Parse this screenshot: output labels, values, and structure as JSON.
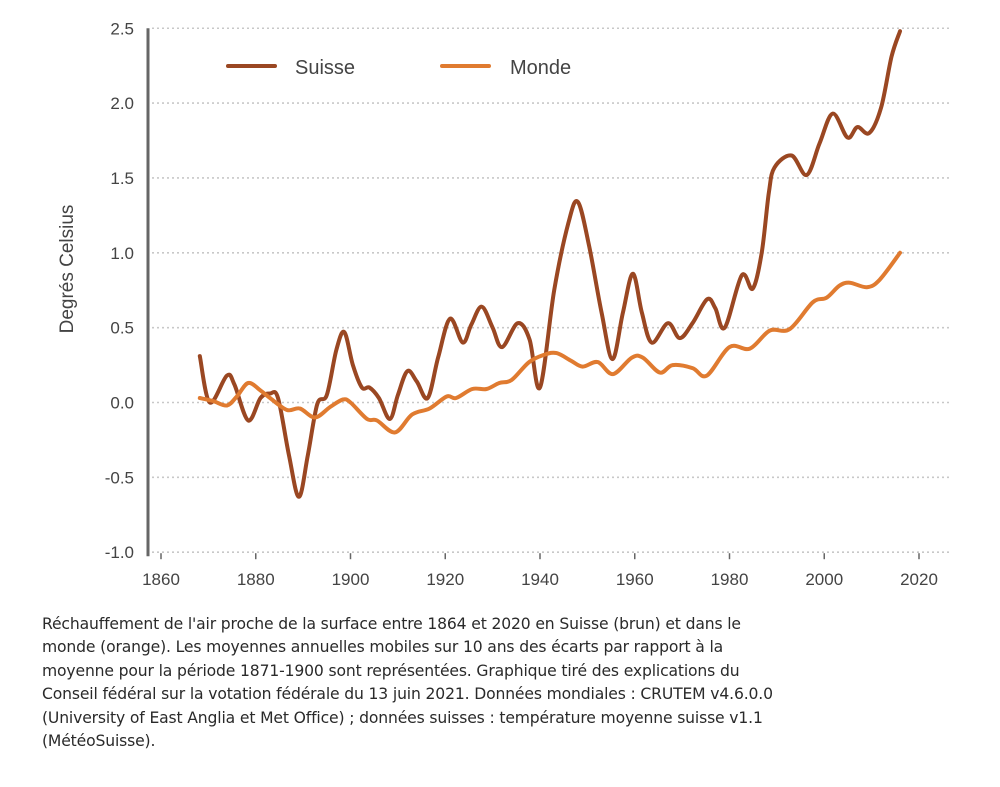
{
  "chart_data": {
    "type": "line",
    "title": "",
    "xlabel": "",
    "ylabel": "Degrés Celsius",
    "xlim": [
      1857,
      2027
    ],
    "ylim": [
      -1.0,
      2.5
    ],
    "xticks": [
      1860,
      1880,
      1900,
      1920,
      1940,
      1960,
      1980,
      2000,
      2020
    ],
    "yticks": [
      -1.0,
      -0.5,
      0.0,
      0.5,
      1.0,
      1.5,
      2.0,
      2.5
    ],
    "ytick_labels": [
      "-1.0",
      "-0.5",
      "0.0",
      "0.5",
      "1.0",
      "1.5",
      "2.0",
      "2.5"
    ],
    "grid": "horizontal-dotted",
    "legend": {
      "placement": "top-left"
    },
    "series": [
      {
        "name": "Suisse",
        "color": "#9a4722",
        "points": [
          [
            1868.2,
            0.31
          ],
          [
            1870.3,
            0.0
          ],
          [
            1873.9,
            0.18
          ],
          [
            1875.5,
            0.12
          ],
          [
            1878.4,
            -0.12
          ],
          [
            1881.0,
            0.03
          ],
          [
            1883.0,
            0.06
          ],
          [
            1884.7,
            0.03
          ],
          [
            1887.0,
            -0.35
          ],
          [
            1889.1,
            -0.63
          ],
          [
            1891.0,
            -0.35
          ],
          [
            1893.0,
            -0.01
          ],
          [
            1895.0,
            0.05
          ],
          [
            1897.0,
            0.35
          ],
          [
            1898.7,
            0.47
          ],
          [
            1900.5,
            0.25
          ],
          [
            1902.4,
            0.1
          ],
          [
            1904.0,
            0.1
          ],
          [
            1906.0,
            0.03
          ],
          [
            1908.3,
            -0.11
          ],
          [
            1910.0,
            0.05
          ],
          [
            1912.0,
            0.21
          ],
          [
            1914.0,
            0.14
          ],
          [
            1916.3,
            0.03
          ],
          [
            1918.5,
            0.3
          ],
          [
            1921.0,
            0.56
          ],
          [
            1923.7,
            0.4
          ],
          [
            1925.5,
            0.52
          ],
          [
            1927.7,
            0.64
          ],
          [
            1930.0,
            0.5
          ],
          [
            1932.0,
            0.37
          ],
          [
            1935.3,
            0.53
          ],
          [
            1937.8,
            0.42
          ],
          [
            1940.0,
            0.1
          ],
          [
            1943.0,
            0.75
          ],
          [
            1946.0,
            1.2
          ],
          [
            1948.0,
            1.34
          ],
          [
            1950.4,
            1.04
          ],
          [
            1953.0,
            0.6
          ],
          [
            1955.3,
            0.29
          ],
          [
            1957.5,
            0.6
          ],
          [
            1959.6,
            0.86
          ],
          [
            1961.5,
            0.6
          ],
          [
            1963.6,
            0.4
          ],
          [
            1967.0,
            0.53
          ],
          [
            1969.5,
            0.43
          ],
          [
            1972.2,
            0.53
          ],
          [
            1975.3,
            0.69
          ],
          [
            1977.0,
            0.63
          ],
          [
            1979.0,
            0.5
          ],
          [
            1982.6,
            0.85
          ],
          [
            1984.9,
            0.76
          ],
          [
            1986.8,
            1.0
          ],
          [
            1988.3,
            1.4
          ],
          [
            1989.5,
            1.57
          ],
          [
            1993.1,
            1.65
          ],
          [
            1996.3,
            1.52
          ],
          [
            1999.0,
            1.73
          ],
          [
            2001.8,
            1.93
          ],
          [
            2004.9,
            1.77
          ],
          [
            2007.0,
            1.84
          ],
          [
            2009.5,
            1.8
          ],
          [
            2012.0,
            1.97
          ],
          [
            2014.2,
            2.31
          ],
          [
            2016.0,
            2.48
          ]
        ]
      },
      {
        "name": "Monde",
        "color": "#e07b30",
        "points": [
          [
            1868.2,
            0.03
          ],
          [
            1871.0,
            0.01
          ],
          [
            1873.9,
            -0.02
          ],
          [
            1876.0,
            0.04
          ],
          [
            1878.4,
            0.13
          ],
          [
            1881.0,
            0.08
          ],
          [
            1883.0,
            0.03
          ],
          [
            1886.6,
            -0.05
          ],
          [
            1889.3,
            -0.04
          ],
          [
            1892.5,
            -0.1
          ],
          [
            1895.7,
            -0.03
          ],
          [
            1898.4,
            0.02
          ],
          [
            1900.0,
            0.0
          ],
          [
            1903.5,
            -0.11
          ],
          [
            1905.6,
            -0.12
          ],
          [
            1909.4,
            -0.2
          ],
          [
            1913.0,
            -0.08
          ],
          [
            1916.7,
            -0.04
          ],
          [
            1920.3,
            0.04
          ],
          [
            1922.3,
            0.03
          ],
          [
            1925.7,
            0.09
          ],
          [
            1928.7,
            0.09
          ],
          [
            1931.4,
            0.13
          ],
          [
            1934.0,
            0.15
          ],
          [
            1937.7,
            0.27
          ],
          [
            1941.0,
            0.32
          ],
          [
            1943.5,
            0.33
          ],
          [
            1946.5,
            0.28
          ],
          [
            1949.0,
            0.24
          ],
          [
            1952.2,
            0.27
          ],
          [
            1955.4,
            0.19
          ],
          [
            1959.4,
            0.3
          ],
          [
            1961.7,
            0.3
          ],
          [
            1965.3,
            0.2
          ],
          [
            1968.0,
            0.25
          ],
          [
            1972.2,
            0.23
          ],
          [
            1975.2,
            0.18
          ],
          [
            1980.0,
            0.37
          ],
          [
            1984.3,
            0.36
          ],
          [
            1988.5,
            0.48
          ],
          [
            1992.7,
            0.49
          ],
          [
            1997.6,
            0.67
          ],
          [
            2000.5,
            0.7
          ],
          [
            2003.2,
            0.78
          ],
          [
            2005.4,
            0.8
          ],
          [
            2009.0,
            0.77
          ],
          [
            2011.7,
            0.82
          ],
          [
            2016.0,
            1.0
          ]
        ]
      }
    ]
  },
  "caption": "Réchauffement de l'air proche de la surface entre 1864 et 2020 en Suisse (brun) et dans le monde (orange). Les moyennes annuelles mobiles sur 10 ans des écarts par rapport à la moyenne pour la période 1871-1900 sont représentées. Graphique tiré des explications du Conseil fédéral sur la votation fédérale du 13 juin 2021. Données mondiales : CRUTEM v4.6.0.0 (University of East Anglia et Met Office) ; données suisses : température moyenne suisse v1.1 (MétéoSuisse).",
  "caption_lines": [
    "Réchauffement de l'air proche de la surface entre 1864 et 2020 en Suisse (brun) et dans le",
    "monde (orange). Les moyennes annuelles mobiles sur 10 ans des écarts par rapport à la",
    "moyenne pour la période 1871-1900 sont représentées. Graphique tiré des explications du",
    "Conseil fédéral sur la votation fédérale du 13 juin 2021. Données mondiales : CRUTEM v4.6.0.0",
    "(University of East Anglia et Met Office) ; données suisses : température moyenne suisse v1.1",
    "(MétéoSuisse)."
  ],
  "axis_color": "#666666",
  "grid_color": "#c8c8c8"
}
